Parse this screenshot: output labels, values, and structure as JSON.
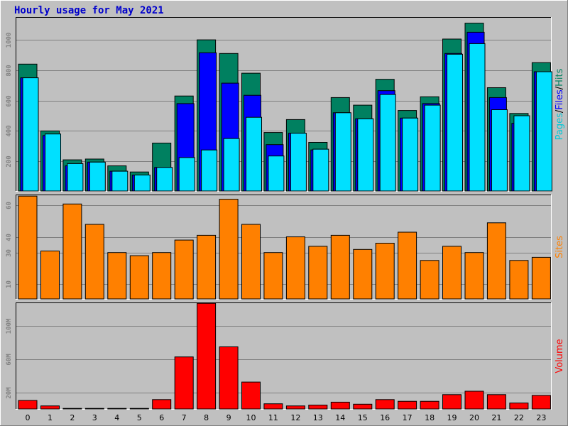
{
  "chart_data": {
    "title": "Hourly usage for May 2021",
    "hours": [
      "0",
      "1",
      "2",
      "3",
      "4",
      "5",
      "6",
      "7",
      "8",
      "9",
      "10",
      "11",
      "12",
      "13",
      "14",
      "15",
      "16",
      "17",
      "18",
      "19",
      "20",
      "21",
      "22",
      "23"
    ],
    "panels": [
      {
        "id": "pages-files-hits",
        "type": "bar",
        "legend_parts": [
          {
            "text": "Pages",
            "color": "#00c8d8"
          },
          {
            "text": "/",
            "color": "#000000"
          },
          {
            "text": "Files",
            "color": "#0000ff"
          },
          {
            "text": "/",
            "color": "#000000"
          },
          {
            "text": "Hits",
            "color": "#008060"
          }
        ],
        "ylim": [
          0,
          1150
        ],
        "ticks": [
          {
            "v": 200,
            "label": "200"
          },
          {
            "v": 400,
            "label": "400"
          },
          {
            "v": 600,
            "label": "600"
          },
          {
            "v": 800,
            "label": "800"
          },
          {
            "v": 1000,
            "label": "1000"
          }
        ],
        "series": [
          {
            "color": "#008060",
            "values": [
              840,
              400,
              210,
              215,
              170,
              130,
              320,
              630,
              1000,
              910,
              780,
              390,
              475,
              325,
              620,
              570,
              740,
              535,
              625,
              1005,
              1110,
              685,
              515,
              850
            ]
          },
          {
            "color": "#0000ff",
            "values": [
              750,
              370,
              170,
              195,
              135,
              110,
              160,
              580,
              915,
              715,
              635,
              310,
              385,
              275,
              520,
              480,
              665,
              485,
              580,
              910,
              1050,
              620,
              450,
              790
            ]
          },
          {
            "color": "#00e0ff",
            "values": [
              750,
              380,
              185,
              195,
              135,
              110,
              160,
              225,
              275,
              350,
              490,
              235,
              385,
              280,
              520,
              480,
              640,
              485,
              570,
              905,
              975,
              540,
              500,
              790
            ]
          }
        ]
      },
      {
        "id": "sites",
        "type": "bar",
        "legend_parts": [
          {
            "text": "Sites",
            "color": "#ff8000"
          }
        ],
        "ylim": [
          0,
          67
        ],
        "ticks": [
          {
            "v": 10,
            "label": "10"
          },
          {
            "v": 30,
            "label": "30"
          },
          {
            "v": 40,
            "label": "40"
          },
          {
            "v": 60,
            "label": "60"
          }
        ],
        "series": [
          {
            "color": "#ff8000",
            "values": [
              66,
              31,
              61,
              48,
              30,
              28,
              30,
              38,
              41,
              64,
              48,
              30,
              40,
              34,
              41,
              32,
              36,
              43,
              25,
              34,
              30,
              49,
              25,
              27
            ]
          }
        ]
      },
      {
        "id": "volume",
        "type": "bar",
        "legend_parts": [
          {
            "text": "Volume",
            "color": "#ff0000"
          }
        ],
        "ylim": [
          0,
          128
        ],
        "ticks": [
          {
            "v": 20,
            "label": "20M"
          },
          {
            "v": 60,
            "label": "60M"
          },
          {
            "v": 100,
            "label": "100M"
          }
        ],
        "series": [
          {
            "color": "#ff0000",
            "values": [
              11,
              4.5,
              1.5,
              1.5,
              1.5,
              1.5,
              12,
              63,
              127,
              75,
              33,
              7,
              4.5,
              5.5,
              9,
              6.5,
              12,
              10,
              10,
              18,
              22,
              18,
              8,
              17
            ]
          }
        ]
      }
    ]
  }
}
